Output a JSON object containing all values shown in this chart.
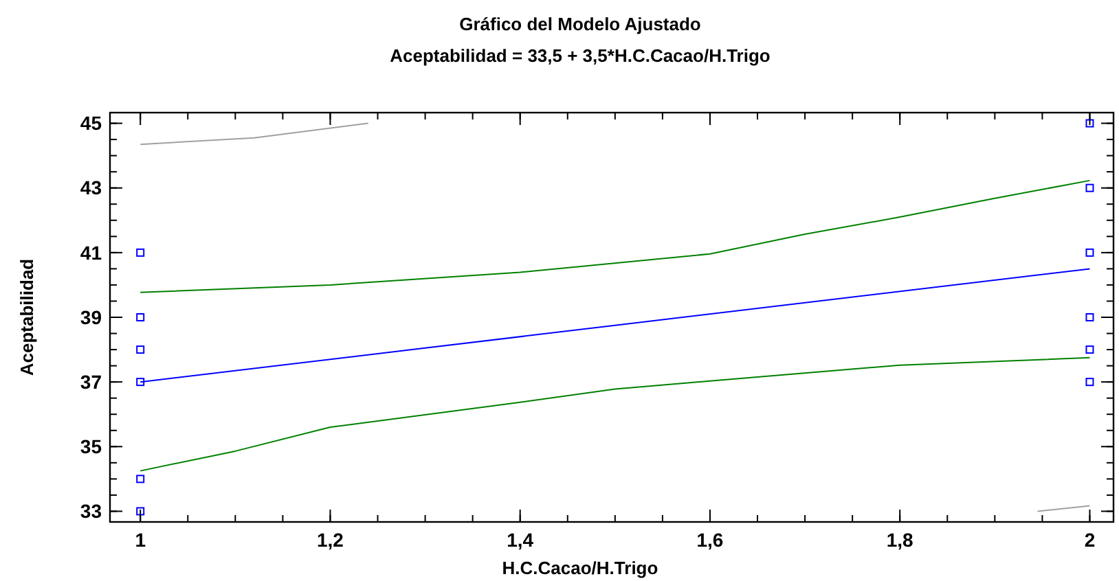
{
  "chart_data": {
    "type": "line",
    "title": "Gráfico del Modelo Ajustado",
    "subtitle": "Aceptabilidad = 33,5 + 3,5*H.C.Cacao/H.Trigo",
    "xlabel": "H.C.Cacao/H.Trigo",
    "ylabel": "Aceptabilidad",
    "xlim": [
      0.968,
      2.025
    ],
    "ylim": [
      32.67,
      45.33
    ],
    "xticks": [
      {
        "value": 1,
        "label": "1"
      },
      {
        "value": 1.2,
        "label": "1,2"
      },
      {
        "value": 1.4,
        "label": "1,4"
      },
      {
        "value": 1.6,
        "label": "1,6"
      },
      {
        "value": 1.8,
        "label": "1,8"
      },
      {
        "value": 2,
        "label": "2"
      }
    ],
    "yticks": [
      33,
      35,
      37,
      39,
      41,
      43,
      45
    ],
    "grid": false,
    "line_style": "solid",
    "series": [
      {
        "type": "scatter",
        "marker": "square",
        "color": "#0000ff",
        "x": [
          1,
          1,
          1,
          1,
          1,
          1,
          2,
          2,
          2,
          2,
          2,
          2
        ],
        "values": [
          41,
          39,
          38,
          37,
          34,
          33,
          45,
          43,
          41,
          39,
          38,
          37
        ]
      },
      {
        "color": "#0000ff",
        "x": [
          1,
          1.5,
          2
        ],
        "values": [
          37,
          38.75,
          40.5
        ]
      },
      {
        "color": "#008000",
        "x": [
          1,
          1.2,
          1.4,
          1.6,
          1.7,
          1.8,
          1.9,
          2
        ],
        "values": [
          39.77,
          40.0,
          40.39,
          40.96,
          41.57,
          42.1,
          42.68,
          43.23
        ]
      },
      {
        "color": "#008000",
        "x": [
          1,
          1.1,
          1.2,
          1.4,
          1.5,
          1.6,
          1.8,
          2
        ],
        "values": [
          34.25,
          34.86,
          35.6,
          36.37,
          36.78,
          37.03,
          37.52,
          37.75
        ]
      },
      {
        "color": "#a0a0a0",
        "x": [
          1,
          1.12,
          1.24
        ],
        "values": [
          44.35,
          44.55,
          45.0
        ]
      },
      {
        "color": "#a0a0a0",
        "x": [
          1.945,
          2
        ],
        "values": [
          33.0,
          33.17
        ]
      }
    ]
  }
}
